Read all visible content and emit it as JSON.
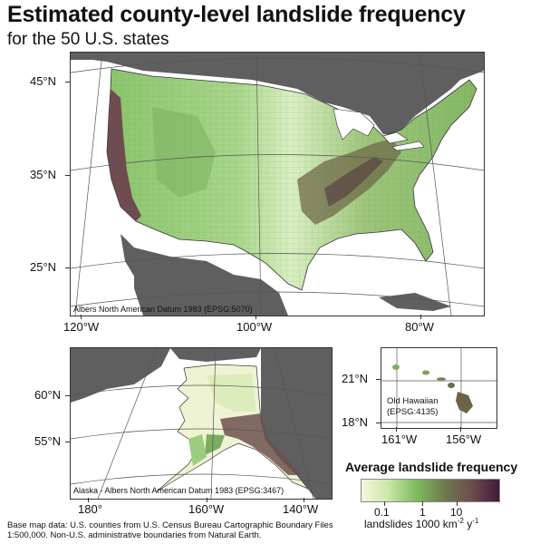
{
  "title": "Estimated county-level landslide frequency",
  "subtitle": "for the 50 U.S. states",
  "conus": {
    "projection": "Albers North American Datum 1983 (EPSG:5070)",
    "lat_labels": [
      "45°N",
      "35°N",
      "25°N"
    ],
    "lon_labels": [
      "120°W",
      "100°W",
      "80°W"
    ]
  },
  "alaska": {
    "projection": "Alaska - Albers North American Datum 1983 (EPSG:3467)",
    "lat_labels": [
      "60°N",
      "55°N"
    ],
    "lon_labels": [
      "180°",
      "160°W",
      "140°W"
    ]
  },
  "hawaii": {
    "projection_line1": "Old Hawaiian",
    "projection_line2": "(EPSG:4135)",
    "lat_labels": [
      "21°N",
      "18°N"
    ],
    "lon_labels": [
      "161°W",
      "156°W"
    ]
  },
  "legend": {
    "title": "Average landslide frequency",
    "ticks": [
      "0.1",
      "1",
      "10"
    ],
    "units_prefix": "landslides 1000 km",
    "units_sup1": "-2",
    "units_mid": " y",
    "units_sup2": "-1",
    "colors": [
      "#f6f6dc",
      "#c9e6a6",
      "#7dbb5c",
      "#6f7a4f",
      "#6d4d4d",
      "#3f1a3a"
    ]
  },
  "credit": "Base map data: U.S. counties from U.S. Census Bureau Cartographic Boundary Files 1:500,000. Non-U.S. administrative boundaries from Natural Earth.",
  "colors": {
    "land_other": "#5f5f5f",
    "water": "#ffffff",
    "graticule": "#555555"
  }
}
